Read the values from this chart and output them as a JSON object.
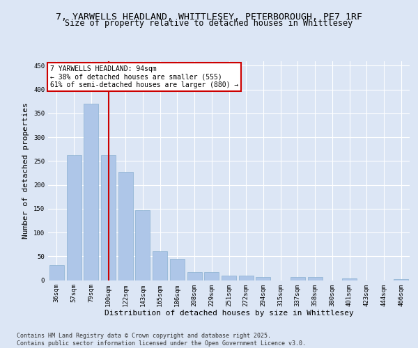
{
  "title_line1": "7, YARWELLS HEADLAND, WHITTLESEY, PETERBOROUGH, PE7 1RF",
  "title_line2": "Size of property relative to detached houses in Whittlesey",
  "xlabel": "Distribution of detached houses by size in Whittlesey",
  "ylabel": "Number of detached properties",
  "categories": [
    "36sqm",
    "57sqm",
    "79sqm",
    "100sqm",
    "122sqm",
    "143sqm",
    "165sqm",
    "186sqm",
    "208sqm",
    "229sqm",
    "251sqm",
    "272sqm",
    "294sqm",
    "315sqm",
    "337sqm",
    "358sqm",
    "380sqm",
    "401sqm",
    "423sqm",
    "444sqm",
    "466sqm"
  ],
  "values": [
    32,
    262,
    370,
    262,
    227,
    147,
    61,
    45,
    17,
    17,
    10,
    10,
    7,
    0,
    6,
    6,
    0,
    3,
    0,
    0,
    2
  ],
  "bar_color": "#aec6e8",
  "bar_edge_color": "#8ab0d0",
  "vline_x": 3,
  "vline_color": "#cc0000",
  "annotation_text": "7 YARWELLS HEADLAND: 94sqm\n← 38% of detached houses are smaller (555)\n61% of semi-detached houses are larger (880) →",
  "annotation_box_color": "#ffffff",
  "annotation_box_edge": "#cc0000",
  "ylim": [
    0,
    460
  ],
  "yticks": [
    0,
    50,
    100,
    150,
    200,
    250,
    300,
    350,
    400,
    450
  ],
  "bg_color": "#dce6f5",
  "plot_bg_color": "#dce6f5",
  "footer": "Contains HM Land Registry data © Crown copyright and database right 2025.\nContains public sector information licensed under the Open Government Licence v3.0.",
  "title_fontsize": 9.5,
  "subtitle_fontsize": 8.5,
  "tick_fontsize": 6.5,
  "label_fontsize": 8,
  "annot_fontsize": 7,
  "footer_fontsize": 6
}
